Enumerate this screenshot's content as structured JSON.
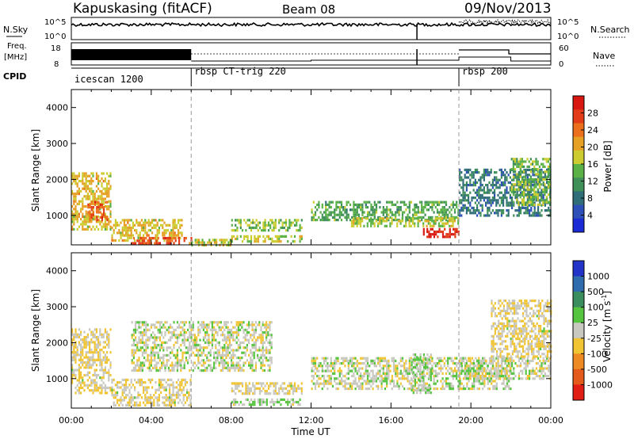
{
  "header": {
    "site": "Kapuskasing (fitACF)",
    "beam": "Beam 08",
    "date": "09/Nov/2013"
  },
  "strips": {
    "nsky_label": "N.Sky",
    "nsky_ticks": [
      "10^5",
      "10^0"
    ],
    "nsearch_label": "N.Search",
    "nsearch_ticks": [
      "10^5",
      "10^0"
    ],
    "freq_label": "Freq.",
    "freq_unit": "[MHz]",
    "freq_ticks": [
      "18",
      "8"
    ],
    "nave_label": "Nave",
    "nave_ticks": [
      "60",
      "0"
    ],
    "cpid_label": "CPID",
    "programs": [
      {
        "name": "icescan 1200",
        "start_hour": 0
      },
      {
        "name": "rbsp CT-trig 220",
        "start_hour": 6
      },
      {
        "name": "rbsp 200",
        "start_hour": 19.4
      }
    ]
  },
  "axes": {
    "xlabel": "Time UT",
    "x_ticks": [
      "00:00",
      "04:00",
      "08:00",
      "12:00",
      "16:00",
      "20:00",
      "00:00"
    ],
    "ylabel": "Slant Range [km]",
    "y_ticks": [
      1000,
      2000,
      3000,
      4000
    ]
  },
  "colorbars": {
    "power": {
      "label": "Power [dB]",
      "ticks": [
        "4",
        "8",
        "12",
        "16",
        "20",
        "24",
        "28"
      ],
      "colors": [
        "#1a2bd6",
        "#2d50b8",
        "#2f6e78",
        "#3f8f58",
        "#5ab247",
        "#cccc30",
        "#e6a024",
        "#ec6f1c",
        "#e23c18",
        "#d81810"
      ]
    },
    "velocity": {
      "label": "Velocity [m s",
      "label_sup": "-1",
      "label_end": "]",
      "ticks": [
        "1000",
        "500",
        "100",
        "25",
        "-25",
        "-100",
        "-500",
        "-1000"
      ],
      "colors": [
        "#2233c8",
        "#2f6cae",
        "#3a8d5c",
        "#55c43e",
        "#c8c8c0",
        "#f0c432",
        "#ee8a22",
        "#e45a1a",
        "#e01e14"
      ]
    }
  },
  "chart_data": [
    {
      "type": "heatmap",
      "title": "Power",
      "xlabel": "Time UT",
      "ylabel": "Slant Range [km]",
      "xlim": [
        0,
        24
      ],
      "ylim": [
        180,
        4500
      ],
      "colorbar_label": "Power [dB]",
      "clim": [
        0,
        30
      ],
      "regions": [
        {
          "t0": 0.0,
          "t1": 2.0,
          "r0": 600,
          "r1": 2200,
          "value": 18
        },
        {
          "t0": 0.8,
          "t1": 1.8,
          "r0": 900,
          "r1": 1400,
          "value": 24
        },
        {
          "t0": 2.0,
          "t1": 5.5,
          "r0": 300,
          "r1": 900,
          "value": 18
        },
        {
          "t0": 3.0,
          "t1": 6.0,
          "r0": 250,
          "r1": 400,
          "value": 24
        },
        {
          "t0": 6.0,
          "t1": 8.0,
          "r0": 200,
          "r1": 350,
          "value": 16
        },
        {
          "t0": 8.0,
          "t1": 11.5,
          "r0": 600,
          "r1": 900,
          "value": 14
        },
        {
          "t0": 8.0,
          "t1": 11.5,
          "r0": 250,
          "r1": 450,
          "value": 16
        },
        {
          "t0": 12.0,
          "t1": 19.4,
          "r0": 900,
          "r1": 1400,
          "value": 12
        },
        {
          "t0": 14.0,
          "t1": 19.4,
          "r0": 700,
          "r1": 950,
          "value": 16
        },
        {
          "t0": 17.6,
          "t1": 19.4,
          "r0": 400,
          "r1": 650,
          "value": 28
        },
        {
          "t0": 19.4,
          "t1": 24.0,
          "r0": 1000,
          "r1": 2300,
          "value": 8
        },
        {
          "t0": 22.0,
          "t1": 24.0,
          "r0": 1300,
          "r1": 2600,
          "value": 14
        }
      ]
    },
    {
      "type": "heatmap",
      "title": "Velocity",
      "xlabel": "Time UT",
      "ylabel": "Slant Range [km]",
      "xlim": [
        0,
        24
      ],
      "ylim": [
        180,
        4500
      ],
      "colorbar_label": "Velocity [m s-1]",
      "clim": [
        -1000,
        1000
      ],
      "regions": [
        {
          "t0": 0.0,
          "t1": 2.0,
          "r0": 600,
          "r1": 2400,
          "value": -100
        },
        {
          "t0": 2.0,
          "t1": 6.0,
          "r0": 250,
          "r1": 1000,
          "value": -100
        },
        {
          "t0": 3.0,
          "t1": 10.0,
          "r0": 1200,
          "r1": 2600,
          "value": 0
        },
        {
          "t0": 8.0,
          "t1": 11.5,
          "r0": 600,
          "r1": 900,
          "value": -100
        },
        {
          "t0": 8.0,
          "t1": 11.5,
          "r0": 250,
          "r1": 450,
          "value": 100
        },
        {
          "t0": 12.0,
          "t1": 22.0,
          "r0": 700,
          "r1": 1600,
          "value": 0
        },
        {
          "t0": 17.0,
          "t1": 18.0,
          "r0": 600,
          "r1": 1700,
          "value": 100
        },
        {
          "t0": 19.4,
          "t1": 24.0,
          "r0": 1000,
          "r1": 1600,
          "value": 0
        },
        {
          "t0": 21.0,
          "t1": 24.0,
          "r0": 1600,
          "r1": 3200,
          "value": -100
        }
      ]
    }
  ]
}
